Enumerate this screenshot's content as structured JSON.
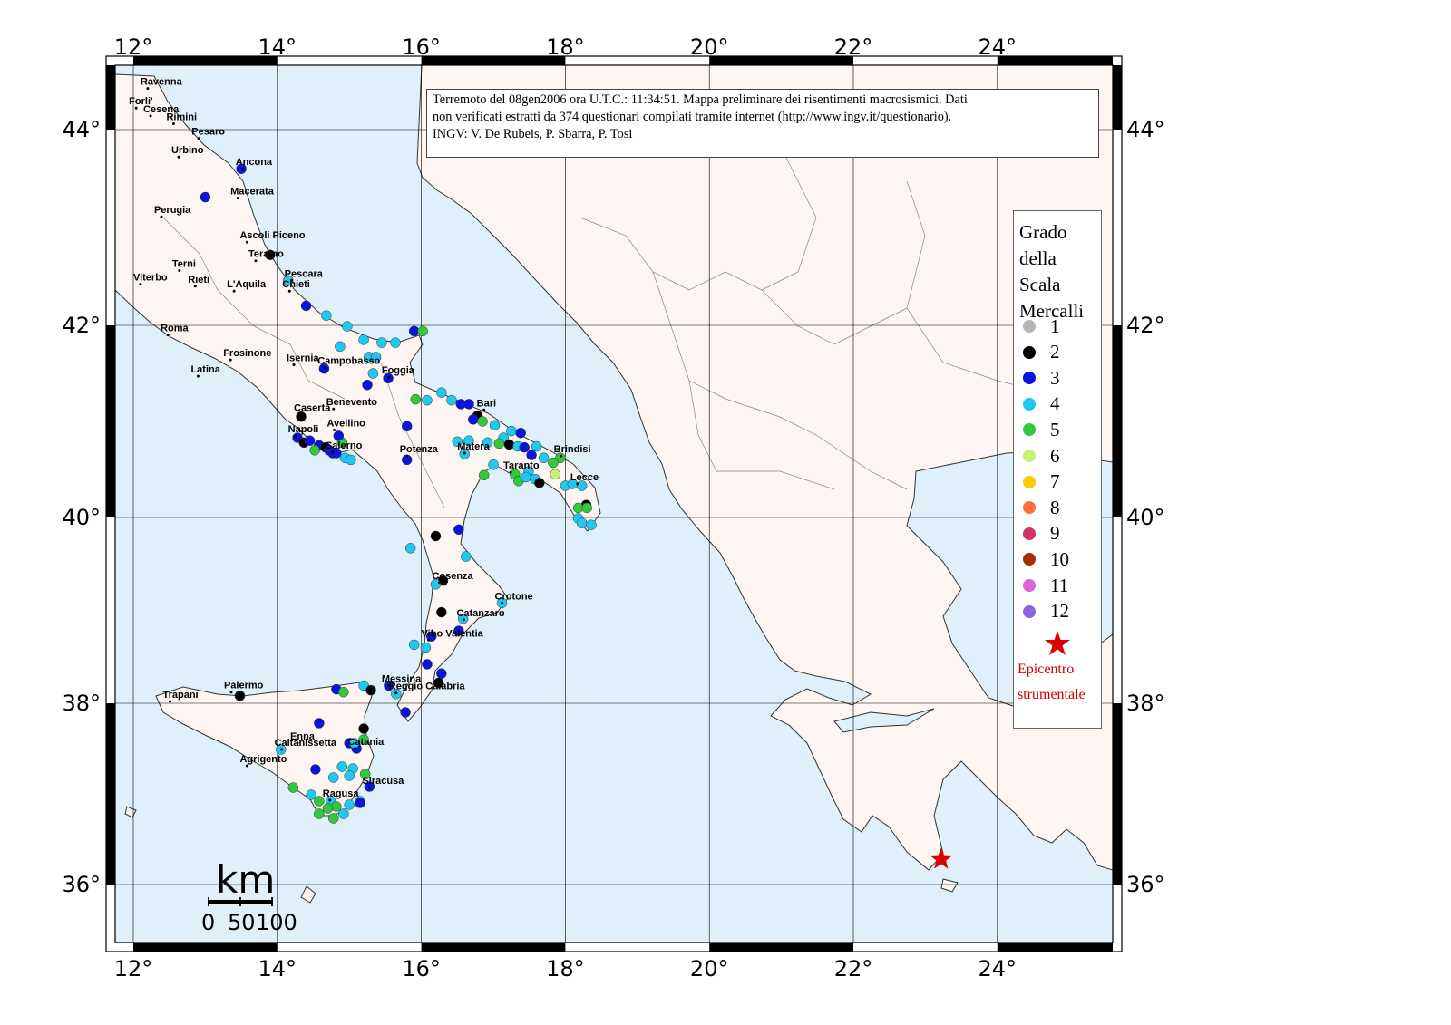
{
  "info_box": {
    "line1": "Terremoto del 08gen2006 ora U.T.C.: 11:34:51.  Mappa preliminare dei risentimenti macrosismici.  Dati",
    "line2": "non verificati estratti da 374 questionari compilati tramite internet (http://www.ingv.it/questionario).",
    "line3": "INGV: V.  De Rubeis, P.  Sbarra, P.  Tosi"
  },
  "legend": {
    "title_lines": [
      "Grado",
      "della",
      "Scala",
      "Mercalli"
    ],
    "grades": [
      {
        "label": "1",
        "color": "#b4b4b4"
      },
      {
        "label": "2",
        "color": "#000000"
      },
      {
        "label": "3",
        "color": "#0a14dc"
      },
      {
        "label": "4",
        "color": "#1ec8f0"
      },
      {
        "label": "5",
        "color": "#32c83c"
      },
      {
        "label": "6",
        "color": "#c8f078"
      },
      {
        "label": "7",
        "color": "#ffc800"
      },
      {
        "label": "8",
        "color": "#ff6e3c"
      },
      {
        "label": "9",
        "color": "#d23264"
      },
      {
        "label": "10",
        "color": "#a03200"
      },
      {
        "label": "11",
        "color": "#dc64dc"
      },
      {
        "label": "12",
        "color": "#8c64dc"
      }
    ],
    "epicenter_lines": [
      "Epicentro",
      "strumentale"
    ],
    "epicenter_color": "#dd0000"
  },
  "axes": {
    "lon_ticks": [
      "12°",
      "14°",
      "16°",
      "18°",
      "20°",
      "22°",
      "24°"
    ],
    "lat_ticks": [
      "44°",
      "42°",
      "40°",
      "38°",
      "36°"
    ]
  },
  "scale_bar": {
    "unit": "km",
    "labels": [
      "0",
      "50",
      "100"
    ]
  },
  "colors": {
    "sea": "#dff0fb",
    "land": "#fdf5f1",
    "coast": "#333333"
  },
  "cities": [
    {
      "name": "Ravenna",
      "lon": 12.2,
      "lat": 44.42
    },
    {
      "name": "Forli'",
      "lon": 12.04,
      "lat": 44.22
    },
    {
      "name": "Cesena",
      "lon": 12.24,
      "lat": 44.14
    },
    {
      "name": "Rimini",
      "lon": 12.56,
      "lat": 44.06
    },
    {
      "name": "Pesaro",
      "lon": 12.91,
      "lat": 43.91
    },
    {
      "name": "Urbino",
      "lon": 12.63,
      "lat": 43.72
    },
    {
      "name": "Ancona",
      "lon": 13.52,
      "lat": 43.6
    },
    {
      "name": "Macerata",
      "lon": 13.45,
      "lat": 43.3
    },
    {
      "name": "Perugia",
      "lon": 12.39,
      "lat": 43.11
    },
    {
      "name": "Ascoli Piceno",
      "lon": 13.58,
      "lat": 42.85
    },
    {
      "name": "Teramo",
      "lon": 13.7,
      "lat": 42.66
    },
    {
      "name": "Terni",
      "lon": 12.64,
      "lat": 42.56
    },
    {
      "name": "Viterbo",
      "lon": 12.1,
      "lat": 42.42
    },
    {
      "name": "Rieti",
      "lon": 12.86,
      "lat": 42.4
    },
    {
      "name": "L'Aquila",
      "lon": 13.4,
      "lat": 42.35
    },
    {
      "name": "Pescara",
      "lon": 14.2,
      "lat": 42.46
    },
    {
      "name": "Chieti",
      "lon": 14.17,
      "lat": 42.35
    },
    {
      "name": "Roma",
      "lon": 12.48,
      "lat": 41.9
    },
    {
      "name": "Frosinone",
      "lon": 13.35,
      "lat": 41.64
    },
    {
      "name": "Isernia",
      "lon": 14.23,
      "lat": 41.59
    },
    {
      "name": "Campobasso",
      "lon": 14.66,
      "lat": 41.56
    },
    {
      "name": "Latina",
      "lon": 12.9,
      "lat": 41.47
    },
    {
      "name": "Foggia",
      "lon": 15.55,
      "lat": 41.46
    },
    {
      "name": "Caserta",
      "lon": 14.33,
      "lat": 41.07
    },
    {
      "name": "Benevento",
      "lon": 14.78,
      "lat": 41.13
    },
    {
      "name": "Bari",
      "lon": 16.87,
      "lat": 41.12
    },
    {
      "name": "Avellino",
      "lon": 14.79,
      "lat": 40.91
    },
    {
      "name": "Napoli",
      "lon": 14.25,
      "lat": 40.85
    },
    {
      "name": "Salerno",
      "lon": 14.77,
      "lat": 40.68
    },
    {
      "name": "Potenza",
      "lon": 15.8,
      "lat": 40.64
    },
    {
      "name": "Matera",
      "lon": 16.6,
      "lat": 40.67
    },
    {
      "name": "Brindisi",
      "lon": 17.94,
      "lat": 40.64
    },
    {
      "name": "Taranto",
      "lon": 17.24,
      "lat": 40.47
    },
    {
      "name": "Lecce",
      "lon": 18.17,
      "lat": 40.35
    },
    {
      "name": "Cosenza",
      "lon": 16.25,
      "lat": 39.3
    },
    {
      "name": "Crotone",
      "lon": 17.12,
      "lat": 39.08
    },
    {
      "name": "Catanzaro",
      "lon": 16.59,
      "lat": 38.9
    },
    {
      "name": "Vibo Valentia",
      "lon": 16.1,
      "lat": 38.68
    },
    {
      "name": "Palermo",
      "lon": 13.36,
      "lat": 38.12
    },
    {
      "name": "Trapani",
      "lon": 12.51,
      "lat": 38.02
    },
    {
      "name": "Messina",
      "lon": 15.55,
      "lat": 38.19
    },
    {
      "name": "Reggio Calabria",
      "lon": 15.65,
      "lat": 38.11
    },
    {
      "name": "Enna",
      "lon": 14.28,
      "lat": 37.56
    },
    {
      "name": "Caltanissetta",
      "lon": 14.06,
      "lat": 37.49
    },
    {
      "name": "Catania",
      "lon": 15.08,
      "lat": 37.5
    },
    {
      "name": "Agrigento",
      "lon": 13.58,
      "lat": 37.31
    },
    {
      "name": "Siracusa",
      "lon": 15.28,
      "lat": 37.07
    },
    {
      "name": "Ragusa",
      "lon": 14.73,
      "lat": 36.93
    }
  ],
  "epicenter": {
    "lon": 23.22,
    "lat": 36.28
  },
  "intensity_points": [
    {
      "lon": 13.5,
      "lat": 43.6,
      "g": 3
    },
    {
      "lon": 13.0,
      "lat": 43.31,
      "g": 3
    },
    {
      "lon": 13.9,
      "lat": 42.72,
      "g": 2
    },
    {
      "lon": 14.15,
      "lat": 42.46,
      "g": 4
    },
    {
      "lon": 14.4,
      "lat": 42.2,
      "g": 3
    },
    {
      "lon": 14.68,
      "lat": 42.1,
      "g": 4
    },
    {
      "lon": 14.97,
      "lat": 41.99,
      "g": 4
    },
    {
      "lon": 15.9,
      "lat": 41.94,
      "g": 3
    },
    {
      "lon": 16.02,
      "lat": 41.94,
      "g": 5
    },
    {
      "lon": 15.2,
      "lat": 41.85,
      "g": 4
    },
    {
      "lon": 15.45,
      "lat": 41.82,
      "g": 4
    },
    {
      "lon": 15.64,
      "lat": 41.82,
      "g": 4
    },
    {
      "lon": 14.87,
      "lat": 41.78,
      "g": 4
    },
    {
      "lon": 15.27,
      "lat": 41.67,
      "g": 4
    },
    {
      "lon": 15.37,
      "lat": 41.67,
      "g": 4
    },
    {
      "lon": 14.65,
      "lat": 41.55,
      "g": 3
    },
    {
      "lon": 15.33,
      "lat": 41.5,
      "g": 4
    },
    {
      "lon": 15.54,
      "lat": 41.45,
      "g": 3
    },
    {
      "lon": 15.25,
      "lat": 41.38,
      "g": 3
    },
    {
      "lon": 15.92,
      "lat": 41.23,
      "g": 5
    },
    {
      "lon": 16.08,
      "lat": 41.22,
      "g": 4
    },
    {
      "lon": 16.28,
      "lat": 41.3,
      "g": 4
    },
    {
      "lon": 16.42,
      "lat": 41.22,
      "g": 4
    },
    {
      "lon": 16.55,
      "lat": 41.18,
      "g": 3
    },
    {
      "lon": 16.66,
      "lat": 41.18,
      "g": 3
    },
    {
      "lon": 16.78,
      "lat": 41.06,
      "g": 2
    },
    {
      "lon": 16.72,
      "lat": 41.02,
      "g": 3
    },
    {
      "lon": 16.85,
      "lat": 41.0,
      "g": 5
    },
    {
      "lon": 17.02,
      "lat": 40.96,
      "g": 4
    },
    {
      "lon": 17.25,
      "lat": 40.9,
      "g": 4
    },
    {
      "lon": 17.38,
      "lat": 40.88,
      "g": 3
    },
    {
      "lon": 17.14,
      "lat": 40.83,
      "g": 4
    },
    {
      "lon": 17.22,
      "lat": 40.76,
      "g": 2
    },
    {
      "lon": 17.34,
      "lat": 40.74,
      "g": 4
    },
    {
      "lon": 17.43,
      "lat": 40.73,
      "g": 3
    },
    {
      "lon": 17.6,
      "lat": 40.74,
      "g": 4
    },
    {
      "lon": 17.53,
      "lat": 40.65,
      "g": 3
    },
    {
      "lon": 17.7,
      "lat": 40.62,
      "g": 4
    },
    {
      "lon": 17.93,
      "lat": 40.62,
      "g": 5
    },
    {
      "lon": 17.83,
      "lat": 40.57,
      "g": 5
    },
    {
      "lon": 16.5,
      "lat": 40.79,
      "g": 4
    },
    {
      "lon": 16.66,
      "lat": 40.8,
      "g": 4
    },
    {
      "lon": 16.92,
      "lat": 40.78,
      "g": 4
    },
    {
      "lon": 17.08,
      "lat": 40.77,
      "g": 5
    },
    {
      "lon": 16.6,
      "lat": 40.66,
      "g": 4
    },
    {
      "lon": 17.0,
      "lat": 40.55,
      "g": 4
    },
    {
      "lon": 17.3,
      "lat": 40.45,
      "g": 5
    },
    {
      "lon": 17.49,
      "lat": 40.48,
      "g": 4
    },
    {
      "lon": 16.87,
      "lat": 40.44,
      "g": 5
    },
    {
      "lon": 17.35,
      "lat": 40.38,
      "g": 5
    },
    {
      "lon": 17.58,
      "lat": 40.4,
      "g": 4
    },
    {
      "lon": 17.64,
      "lat": 40.36,
      "g": 2
    },
    {
      "lon": 17.45,
      "lat": 40.42,
      "g": 4
    },
    {
      "lon": 17.86,
      "lat": 40.45,
      "g": 6
    },
    {
      "lon": 18.0,
      "lat": 40.33,
      "g": 4
    },
    {
      "lon": 18.1,
      "lat": 40.35,
      "g": 4
    },
    {
      "lon": 18.23,
      "lat": 40.33,
      "g": 4
    },
    {
      "lon": 18.29,
      "lat": 40.13,
      "g": 2
    },
    {
      "lon": 18.18,
      "lat": 40.1,
      "g": 5
    },
    {
      "lon": 18.3,
      "lat": 40.1,
      "g": 5
    },
    {
      "lon": 18.18,
      "lat": 39.99,
      "g": 4
    },
    {
      "lon": 18.23,
      "lat": 39.94,
      "g": 4
    },
    {
      "lon": 18.36,
      "lat": 39.92,
      "g": 4
    },
    {
      "lon": 15.8,
      "lat": 40.95,
      "g": 3
    },
    {
      "lon": 15.8,
      "lat": 40.6,
      "g": 3
    },
    {
      "lon": 14.33,
      "lat": 41.05,
      "g": 2
    },
    {
      "lon": 14.28,
      "lat": 40.83,
      "g": 3
    },
    {
      "lon": 14.37,
      "lat": 40.78,
      "g": 2
    },
    {
      "lon": 14.45,
      "lat": 40.8,
      "g": 3
    },
    {
      "lon": 14.58,
      "lat": 40.75,
      "g": 3
    },
    {
      "lon": 14.67,
      "lat": 40.73,
      "g": 2
    },
    {
      "lon": 14.72,
      "lat": 40.7,
      "g": 3
    },
    {
      "lon": 14.9,
      "lat": 40.78,
      "g": 5
    },
    {
      "lon": 14.85,
      "lat": 40.85,
      "g": 3
    },
    {
      "lon": 14.52,
      "lat": 40.7,
      "g": 5
    },
    {
      "lon": 14.77,
      "lat": 40.67,
      "g": 3
    },
    {
      "lon": 14.82,
      "lat": 40.67,
      "g": 3
    },
    {
      "lon": 14.94,
      "lat": 40.62,
      "g": 4
    },
    {
      "lon": 15.02,
      "lat": 40.6,
      "g": 4
    },
    {
      "lon": 16.2,
      "lat": 39.8,
      "g": 2
    },
    {
      "lon": 16.52,
      "lat": 39.87,
      "g": 3
    },
    {
      "lon": 15.85,
      "lat": 39.67,
      "g": 4
    },
    {
      "lon": 16.62,
      "lat": 39.58,
      "g": 4
    },
    {
      "lon": 16.3,
      "lat": 39.32,
      "g": 2
    },
    {
      "lon": 16.2,
      "lat": 39.28,
      "g": 4
    },
    {
      "lon": 17.12,
      "lat": 39.08,
      "g": 4
    },
    {
      "lon": 16.58,
      "lat": 38.91,
      "g": 4
    },
    {
      "lon": 16.28,
      "lat": 38.98,
      "g": 2
    },
    {
      "lon": 16.52,
      "lat": 38.78,
      "g": 3
    },
    {
      "lon": 16.14,
      "lat": 38.72,
      "g": 3
    },
    {
      "lon": 15.9,
      "lat": 38.63,
      "g": 4
    },
    {
      "lon": 16.06,
      "lat": 38.6,
      "g": 4
    },
    {
      "lon": 16.08,
      "lat": 38.42,
      "g": 3
    },
    {
      "lon": 16.28,
      "lat": 38.32,
      "g": 3
    },
    {
      "lon": 16.24,
      "lat": 38.22,
      "g": 2
    },
    {
      "lon": 15.55,
      "lat": 38.19,
      "g": 3
    },
    {
      "lon": 15.65,
      "lat": 38.1,
      "g": 4
    },
    {
      "lon": 15.78,
      "lat": 37.9,
      "g": 3
    },
    {
      "lon": 15.2,
      "lat": 38.19,
      "g": 4
    },
    {
      "lon": 15.3,
      "lat": 38.14,
      "g": 2
    },
    {
      "lon": 14.82,
      "lat": 38.15,
      "g": 3
    },
    {
      "lon": 14.92,
      "lat": 38.12,
      "g": 5
    },
    {
      "lon": 13.48,
      "lat": 38.08,
      "g": 2
    },
    {
      "lon": 14.58,
      "lat": 37.78,
      "g": 3
    },
    {
      "lon": 15.2,
      "lat": 37.72,
      "g": 2
    },
    {
      "lon": 15.2,
      "lat": 37.6,
      "g": 5
    },
    {
      "lon": 15.0,
      "lat": 37.56,
      "g": 3
    },
    {
      "lon": 15.1,
      "lat": 37.5,
      "g": 3
    },
    {
      "lon": 15.07,
      "lat": 37.56,
      "g": 4
    },
    {
      "lon": 14.05,
      "lat": 37.49,
      "g": 4
    },
    {
      "lon": 14.53,
      "lat": 37.27,
      "g": 3
    },
    {
      "lon": 14.9,
      "lat": 37.3,
      "g": 4
    },
    {
      "lon": 15.05,
      "lat": 37.28,
      "g": 4
    },
    {
      "lon": 14.78,
      "lat": 37.18,
      "g": 4
    },
    {
      "lon": 15.0,
      "lat": 37.2,
      "g": 4
    },
    {
      "lon": 15.22,
      "lat": 37.22,
      "g": 5
    },
    {
      "lon": 15.28,
      "lat": 37.08,
      "g": 3
    },
    {
      "lon": 14.22,
      "lat": 37.07,
      "g": 5
    },
    {
      "lon": 14.47,
      "lat": 36.99,
      "g": 4
    },
    {
      "lon": 14.58,
      "lat": 36.92,
      "g": 5
    },
    {
      "lon": 14.74,
      "lat": 36.92,
      "g": 4
    },
    {
      "lon": 14.82,
      "lat": 36.86,
      "g": 5
    },
    {
      "lon": 15.0,
      "lat": 36.88,
      "g": 4
    },
    {
      "lon": 15.15,
      "lat": 36.92,
      "g": 4
    },
    {
      "lon": 14.58,
      "lat": 36.78,
      "g": 5
    },
    {
      "lon": 14.78,
      "lat": 36.73,
      "g": 5
    },
    {
      "lon": 14.92,
      "lat": 36.78,
      "g": 4
    },
    {
      "lon": 15.15,
      "lat": 36.9,
      "g": 3
    },
    {
      "lon": 14.7,
      "lat": 36.84,
      "g": 5
    }
  ]
}
